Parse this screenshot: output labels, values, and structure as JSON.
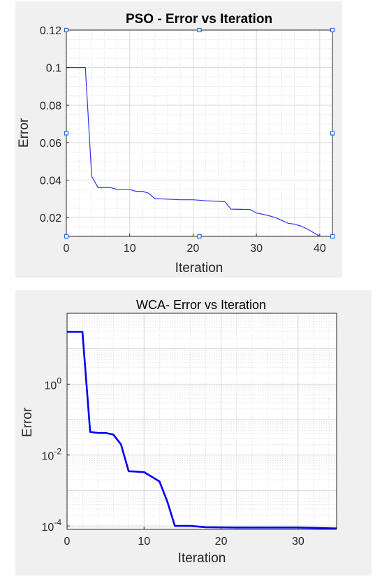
{
  "chart_data": [
    {
      "type": "line",
      "title": "PSO - Error vs Iteration",
      "xlabel": "Iteration",
      "ylabel": "Error",
      "yscale": "linear",
      "xlim": [
        0,
        42
      ],
      "ylim": [
        0.01,
        0.12
      ],
      "xticks": [
        "0",
        "10",
        "20",
        "30",
        "40"
      ],
      "yticks": [
        "0.02",
        "0.04",
        "0.06",
        "0.08",
        "0.1",
        "0.12"
      ],
      "grid": true,
      "line_color": "#3333ff",
      "series": [
        {
          "x": [
            0,
            3,
            4,
            5,
            7,
            8,
            10,
            11,
            12,
            13,
            14,
            15,
            18,
            20,
            22,
            25,
            26,
            29,
            30,
            32,
            33,
            35,
            36,
            37,
            38,
            39,
            40
          ],
          "y": [
            0.1,
            0.1,
            0.042,
            0.036,
            0.036,
            0.035,
            0.035,
            0.034,
            0.034,
            0.033,
            0.03,
            0.03,
            0.0295,
            0.0295,
            0.029,
            0.0285,
            0.0245,
            0.0243,
            0.0225,
            0.021,
            0.02,
            0.017,
            0.0165,
            0.0155,
            0.014,
            0.012,
            0.01
          ]
        }
      ]
    },
    {
      "type": "line",
      "title": "WCA- Error vs Iteration",
      "xlabel": "Iteration",
      "ylabel": "Error",
      "yscale": "log",
      "xlim": [
        0,
        35
      ],
      "ylim": [
        8e-05,
        100
      ],
      "xticks": [
        "0",
        "10",
        "20",
        "30"
      ],
      "yticks": [
        {
          "base": "10",
          "exp": "-4"
        },
        {
          "base": "10",
          "exp": "-2"
        },
        {
          "base": "10",
          "exp": "0"
        }
      ],
      "grid": true,
      "line_color": "#0000ee",
      "series": [
        {
          "x": [
            0,
            2,
            3,
            4,
            5,
            6,
            7,
            8,
            10,
            12,
            13,
            14,
            16,
            18,
            22,
            30,
            35
          ],
          "y": [
            30,
            30,
            0.045,
            0.042,
            0.042,
            0.038,
            0.02,
            0.0035,
            0.0033,
            0.0018,
            0.0005,
            0.0001,
            0.0001,
            9.2e-05,
            9e-05,
            9e-05,
            8.5e-05
          ]
        }
      ]
    }
  ]
}
